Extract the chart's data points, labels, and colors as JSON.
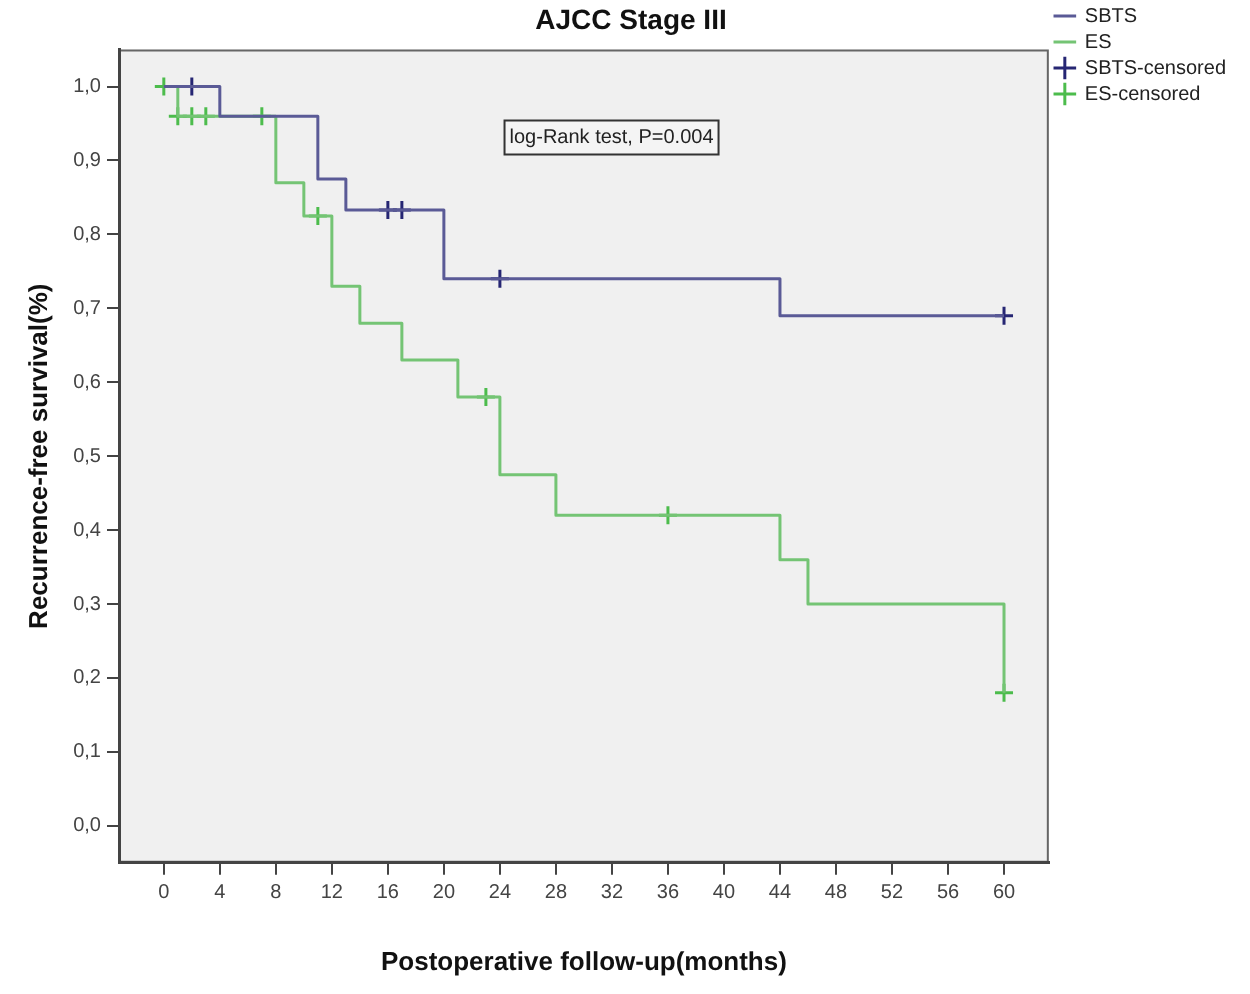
{
  "chart_data": {
    "type": "step",
    "title": "AJCC Stage III",
    "xlabel": "Postoperative follow-up(months)",
    "ylabel": "Recurrence-free survival(%)",
    "annotations": [
      "log-Rank test, P=0.004"
    ],
    "series": [
      {
        "name": "SBTS",
        "color": "#5a5a96",
        "x": [
          0,
          4,
          11,
          13,
          20,
          44,
          60
        ],
        "values": [
          1.0,
          0.96,
          0.875,
          0.833,
          0.74,
          0.69,
          0.69
        ]
      },
      {
        "name": "ES",
        "color": "#74c474",
        "x": [
          0,
          1,
          8,
          10,
          12,
          14,
          17,
          21,
          24,
          28,
          44,
          46,
          60
        ],
        "values": [
          1.0,
          0.96,
          0.87,
          0.825,
          0.73,
          0.68,
          0.63,
          0.58,
          0.475,
          0.42,
          0.36,
          0.3,
          0.18
        ]
      },
      {
        "name": "SBTS-censored",
        "type": "scatter",
        "color": "#262673",
        "x": [
          2,
          16,
          17,
          24,
          60
        ],
        "values": [
          1.0,
          0.833,
          0.833,
          0.74,
          0.69
        ],
        "marker": "cross"
      },
      {
        "name": "ES-censored",
        "type": "scatter",
        "color": "#4cbc4c",
        "x": [
          0,
          1,
          2,
          3,
          7,
          11,
          23,
          36,
          60
        ],
        "values": [
          1.0,
          0.96,
          0.96,
          0.96,
          0.96,
          0.825,
          0.58,
          0.42,
          0.18
        ],
        "marker": "cross"
      }
    ],
    "xlim": [
      -3.2,
      63.2
    ],
    "xticks": [
      0,
      4,
      8,
      12,
      16,
      20,
      24,
      28,
      32,
      36,
      40,
      44,
      48,
      52,
      56,
      60
    ],
    "ylim": [
      -0.05,
      1.05
    ],
    "yticks": [
      {
        "value": 0,
        "label": "0,0"
      },
      {
        "value": 0.1,
        "label": "0,1"
      },
      {
        "value": 0.2,
        "label": "0,2"
      },
      {
        "value": 0.3,
        "label": "0,3"
      },
      {
        "value": 0.4,
        "label": "0,4"
      },
      {
        "value": 0.5,
        "label": "0,5"
      },
      {
        "value": 0.6,
        "label": "0,6"
      },
      {
        "value": 0.7,
        "label": "0,7"
      },
      {
        "value": 0.8,
        "label": "0,8"
      },
      {
        "value": 0.9,
        "label": "0,9"
      },
      {
        "value": 1.0,
        "label": "1,0"
      }
    ],
    "grid": false,
    "legend": "right"
  }
}
